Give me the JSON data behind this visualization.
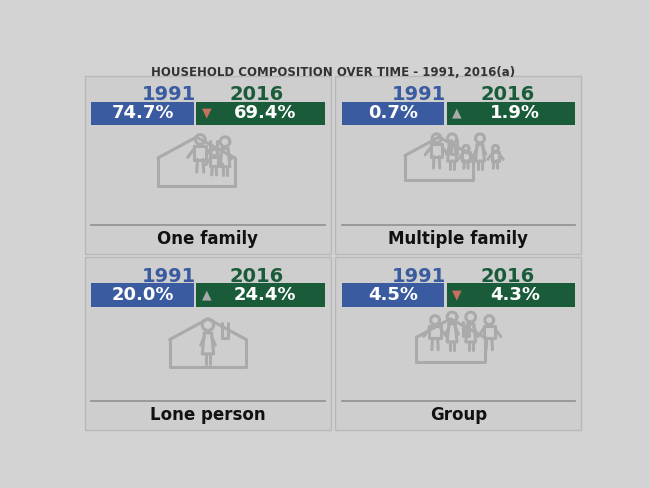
{
  "title": "HOUSEHOLD COMPOSITION OVER TIME - 1991, 2016(a)",
  "title_fontsize": 8.5,
  "bg_color": "#d3d3d3",
  "panel_bg": "#cecece",
  "blue_color": "#3a5ba0",
  "green_color": "#1a5c3a",
  "white": "#ffffff",
  "icon_color": "#aaaaaa",
  "icon_lw": 2.2,
  "panels": [
    {
      "label": "One family",
      "val1991": "74.7%",
      "val2016": "69.4%",
      "arrow": "down",
      "arrow_color": "#c87060",
      "icon": "one_family"
    },
    {
      "label": "Multiple family",
      "val1991": "0.7%",
      "val2016": "1.9%",
      "arrow": "up",
      "arrow_color": "#aaaaaa",
      "icon": "multiple_family"
    },
    {
      "label": "Lone person",
      "val1991": "20.0%",
      "val2016": "24.4%",
      "arrow": "up",
      "arrow_color": "#aaaaaa",
      "icon": "lone_person"
    },
    {
      "label": "Group",
      "val1991": "4.5%",
      "val2016": "4.3%",
      "arrow": "down",
      "arrow_color": "#c87060",
      "icon": "group"
    }
  ]
}
